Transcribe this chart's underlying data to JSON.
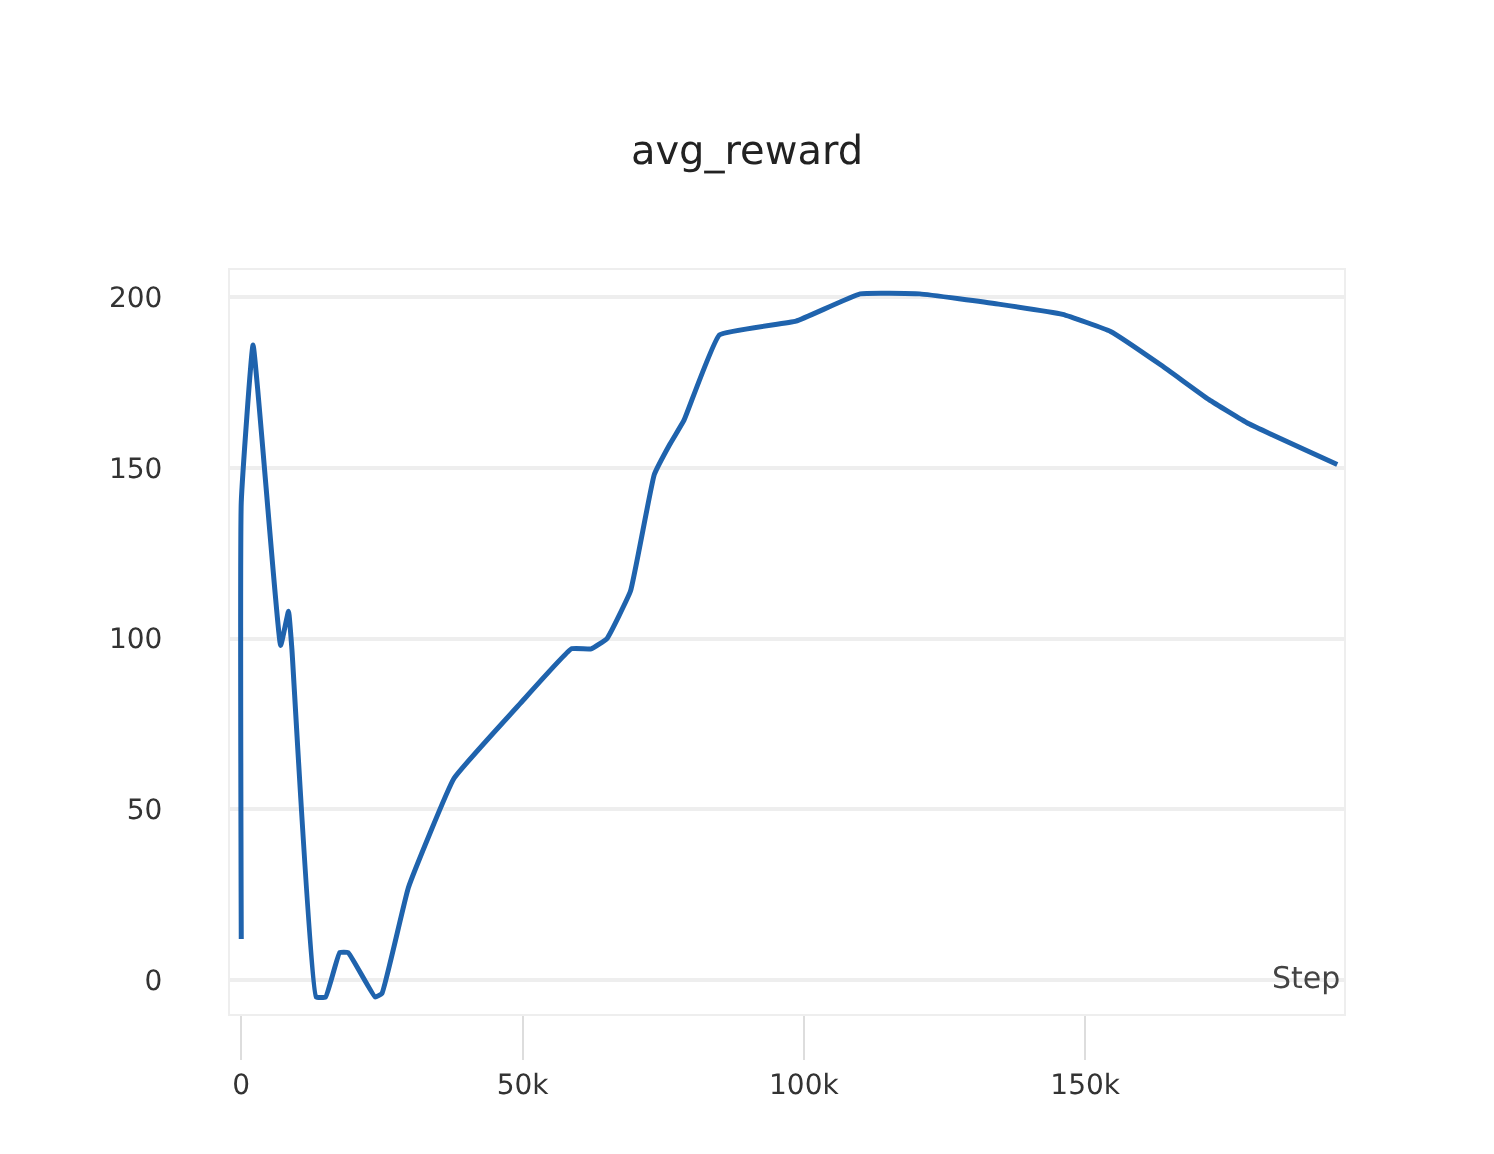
{
  "chart_data": {
    "type": "line",
    "title": "avg_reward",
    "xlabel": "Step",
    "x": [
      0,
      0,
      2100,
      7000,
      8400,
      9000,
      13300,
      15000,
      17500,
      19000,
      23800,
      25000,
      29700,
      37800,
      49600,
      58700,
      62200,
      65000,
      69200,
      73400,
      76200,
      78700,
      85000,
      98600,
      110000,
      120600,
      134600,
      146000,
      154500,
      163600,
      172000,
      179000,
      194800
    ],
    "series": [
      {
        "color": "#1f63ad",
        "values": [
          12,
          140,
          186,
          98,
          108,
          97,
          -5,
          -5,
          8,
          8,
          -5,
          -4,
          27,
          59,
          81,
          97,
          97,
          100,
          114,
          148,
          157,
          164,
          189,
          193,
          201,
          201,
          198,
          195,
          190,
          180,
          170,
          163,
          151
        ]
      }
    ],
    "xlim": [
      -2000,
      196000
    ],
    "xticks": [
      0,
      {
        "value": 50000,
        "label": "50k"
      },
      {
        "value": 100000,
        "label": "100k"
      },
      {
        "value": 150000,
        "label": "150k"
      }
    ],
    "ylim": [
      -10,
      208
    ],
    "yticks": [
      0,
      50,
      100,
      150,
      200
    ],
    "grid": "y",
    "marker": "none",
    "line_style": "solid"
  }
}
